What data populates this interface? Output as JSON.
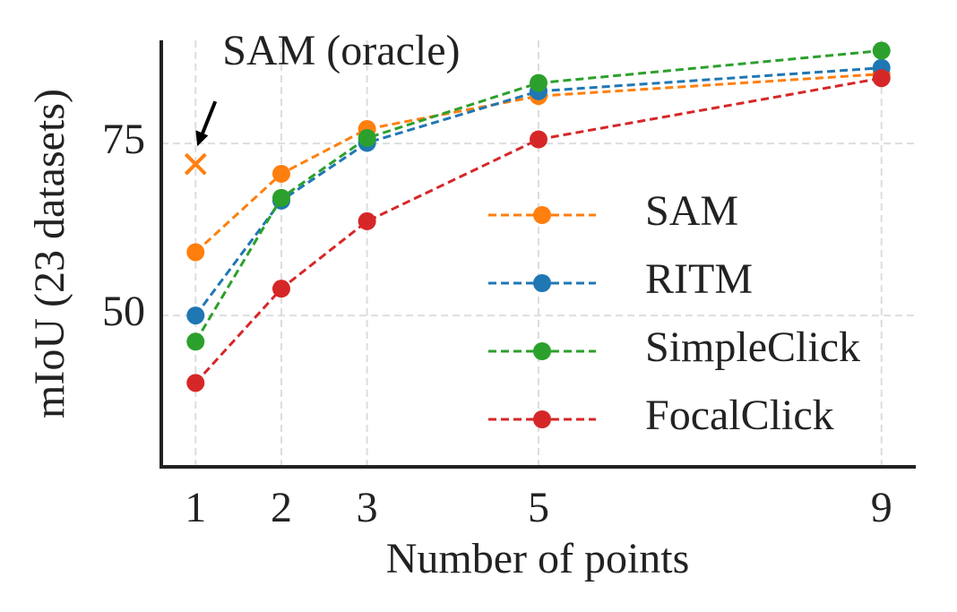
{
  "chart_data": {
    "type": "line",
    "y_label": "mIoU (23 datasets)",
    "x_label": "Number of points",
    "x": [
      1,
      2,
      3,
      5,
      9
    ],
    "xlim": [
      0.6,
      9.4
    ],
    "xticks": [
      1,
      2,
      3,
      5,
      9
    ],
    "ylim": [
      28,
      90
    ],
    "yticks": [
      50,
      75
    ],
    "grid": true,
    "legend": "lower right",
    "series": [
      {
        "name": "SAM",
        "color": "#ff7f0e",
        "values": [
          59.2,
          70.6,
          77.1,
          81.9,
          85.1
        ]
      },
      {
        "name": "RITM",
        "color": "#1f77b4",
        "values": [
          50.0,
          66.7,
          75.1,
          82.6,
          86.0
        ]
      },
      {
        "name": "SimpleClick",
        "color": "#2ca02c",
        "values": [
          46.2,
          67.1,
          75.8,
          83.8,
          88.5
        ]
      },
      {
        "name": "FocalClick",
        "color": "#d62728",
        "values": [
          40.2,
          53.9,
          63.7,
          75.6,
          84.5
        ]
      }
    ],
    "oracle": {
      "label": "SAM (oracle)",
      "x": 1,
      "value": 72.0,
      "color": "#ff7f0e"
    }
  }
}
